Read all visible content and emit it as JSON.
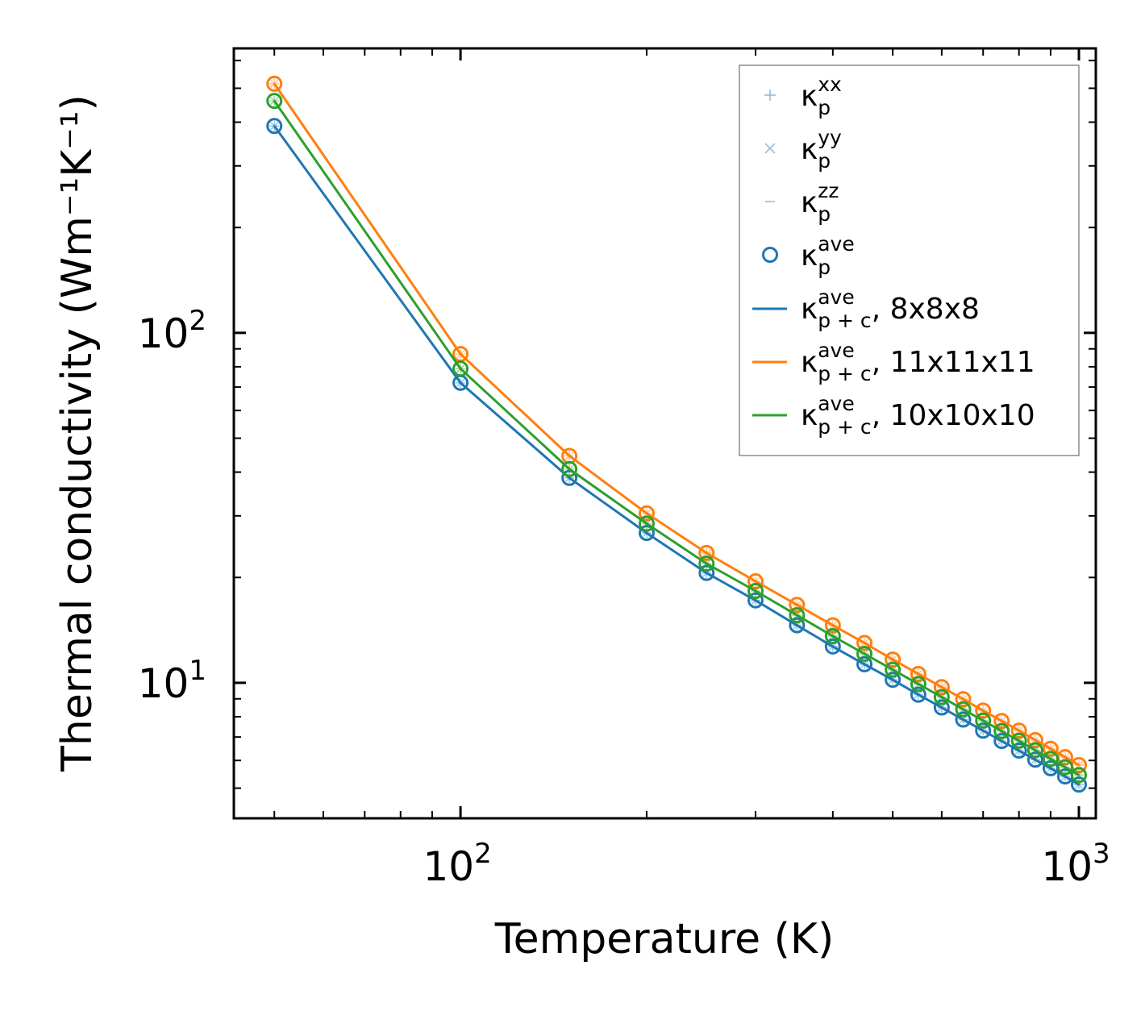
{
  "chart_data": {
    "type": "line",
    "xscale": "log",
    "yscale": "log",
    "xlabel": "Temperature (K)",
    "ylabel": "Thermal conductivity (Wm⁻¹K⁻¹)",
    "xlim": [
      43,
      1065
    ],
    "ylim": [
      4.1,
      650
    ],
    "x_major_ticks": [
      {
        "value": 100,
        "base": "10",
        "exp": "2"
      },
      {
        "value": 1000,
        "base": "10",
        "exp": "3"
      }
    ],
    "y_major_ticks": [
      {
        "value": 10,
        "base": "10",
        "exp": "1"
      },
      {
        "value": 100,
        "base": "10",
        "exp": "2"
      }
    ],
    "x_minor_ticks": [
      50,
      60,
      70,
      80,
      90,
      200,
      300,
      400,
      500,
      600,
      700,
      800,
      900
    ],
    "y_minor_ticks": [
      5,
      6,
      7,
      8,
      9,
      20,
      30,
      40,
      50,
      60,
      70,
      80,
      90,
      200,
      300,
      400,
      500,
      600
    ],
    "x": [
      50,
      100,
      150,
      200,
      250,
      300,
      350,
      400,
      450,
      500,
      550,
      600,
      650,
      700,
      750,
      800,
      850,
      900,
      950,
      1000
    ],
    "series": [
      {
        "name": "8x8x8",
        "color": "#1f77b4",
        "values": [
          390,
          72,
          38.5,
          26.8,
          20.6,
          17.2,
          14.6,
          12.7,
          11.3,
          10.2,
          9.25,
          8.5,
          7.85,
          7.3,
          6.82,
          6.4,
          6.03,
          5.7,
          5.4,
          5.12
        ]
      },
      {
        "name": "11x11x11",
        "color": "#ff7f0e",
        "values": [
          515,
          87,
          44.5,
          30.5,
          23.5,
          19.5,
          16.7,
          14.6,
          13,
          11.65,
          10.6,
          9.72,
          8.98,
          8.33,
          7.78,
          7.3,
          6.86,
          6.48,
          6.13,
          5.82
        ]
      },
      {
        "name": "10x10x10",
        "color": "#2ca02c",
        "values": [
          460,
          79,
          40.8,
          28.5,
          21.9,
          18.3,
          15.6,
          13.6,
          12.1,
          10.9,
          9.92,
          9.1,
          8.4,
          7.8,
          7.28,
          6.83,
          6.42,
          6.06,
          5.74,
          5.45
        ]
      }
    ],
    "legend": {
      "position": "upper right",
      "entries": [
        {
          "marker": "plus",
          "symbol": "κ",
          "sub": "p",
          "sup": "xx",
          "suffix": ""
        },
        {
          "marker": "x",
          "symbol": "κ",
          "sub": "p",
          "sup": "yy",
          "suffix": ""
        },
        {
          "marker": "hline",
          "symbol": "κ",
          "sub": "p",
          "sup": "zz",
          "suffix": ""
        },
        {
          "marker": "circle",
          "symbol": "κ",
          "sub": "p",
          "sup": "ave",
          "suffix": ""
        },
        {
          "marker": "line",
          "symbol": "κ",
          "sub": "p + c",
          "sup": "ave",
          "suffix": ", 8x8x8"
        },
        {
          "marker": "line",
          "symbol": "κ",
          "sub": "p + c",
          "sup": "ave",
          "suffix": ", 11x11x11"
        },
        {
          "marker": "line",
          "symbol": "κ",
          "sub": "p + c",
          "sup": "ave",
          "suffix": ", 10x10x10"
        }
      ]
    }
  }
}
